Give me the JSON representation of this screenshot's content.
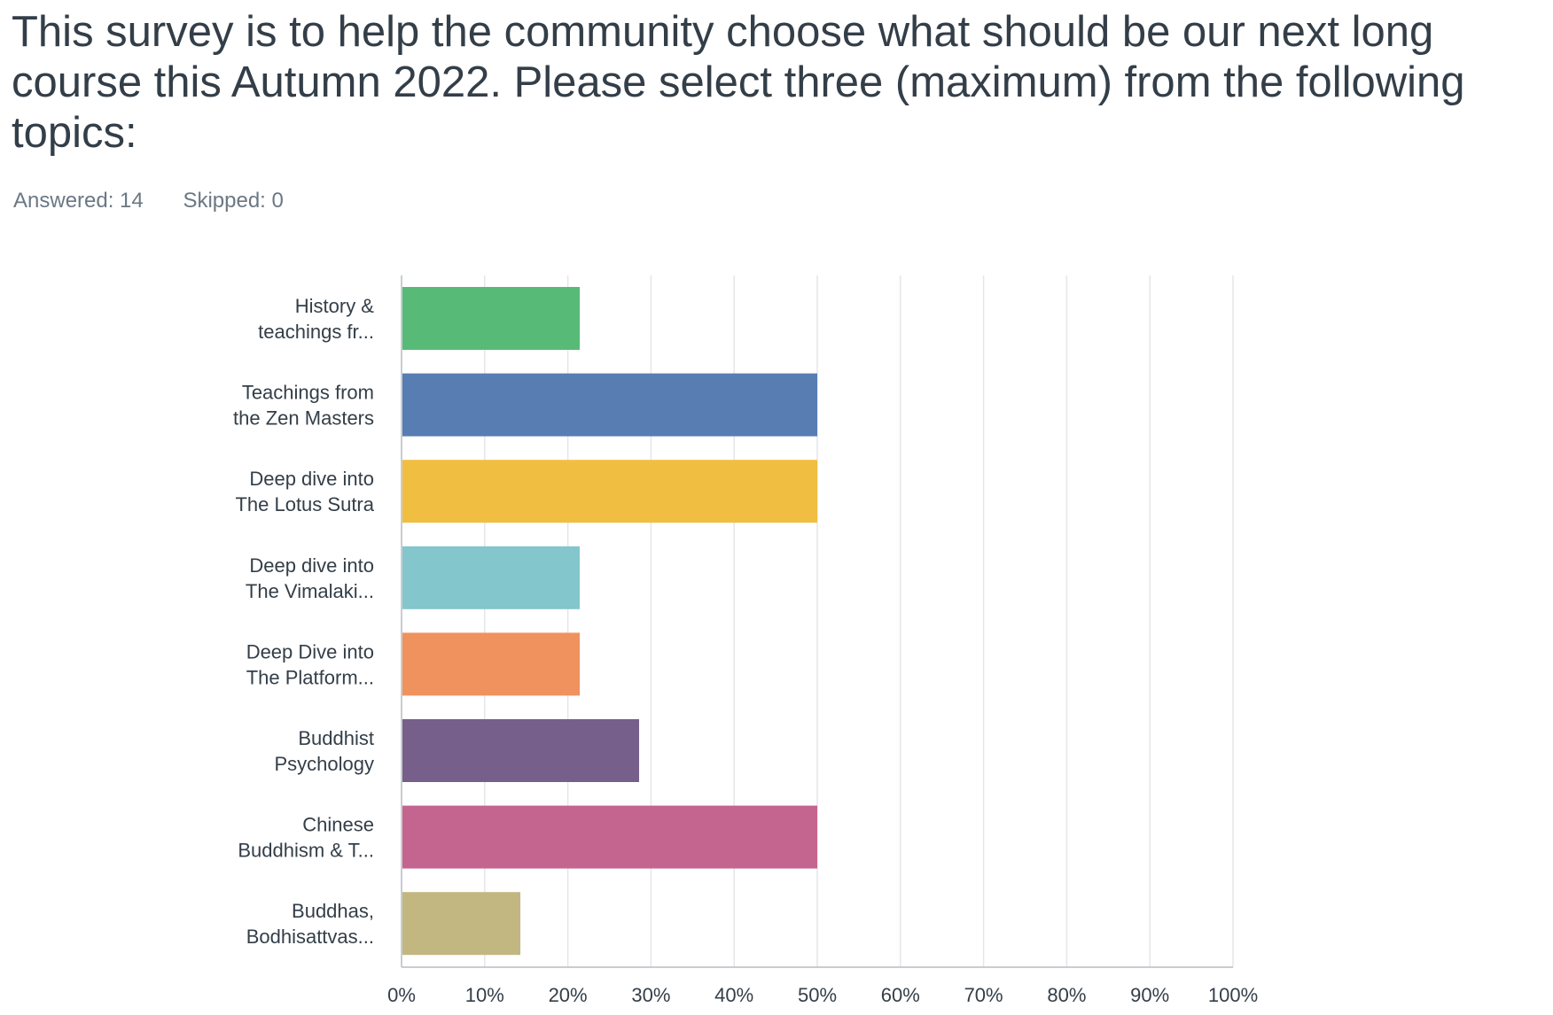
{
  "question": {
    "title": "This survey is to help the community choose what should be our next long course this Autumn 2022. Please select three (maximum) from the following topics:"
  },
  "stats": {
    "answered_label": "Answered: 14",
    "skipped_label": "Skipped: 0"
  },
  "chart_data": {
    "type": "bar",
    "orientation": "horizontal",
    "categories": [
      [
        "History &",
        "teachings fr..."
      ],
      [
        "Teachings from",
        "the Zen Masters"
      ],
      [
        "Deep dive into",
        "The Lotus Sutra"
      ],
      [
        "Deep dive into",
        "The Vimalaki..."
      ],
      [
        "Deep Dive into",
        "The Platform..."
      ],
      [
        "Buddhist",
        "Psychology"
      ],
      [
        "Chinese",
        "Buddhism & T..."
      ],
      [
        "Buddhas,",
        "Bodhisattvas..."
      ]
    ],
    "values": [
      21.43,
      50,
      50,
      21.43,
      21.43,
      28.57,
      50,
      14.29
    ],
    "colors": [
      "#57bb77",
      "#587db3",
      "#f0bf42",
      "#83c6cc",
      "#f0925d",
      "#775f8b",
      "#c4658f",
      "#c3b781"
    ],
    "xlim": [
      0,
      100
    ],
    "xticks": [
      0,
      10,
      20,
      30,
      40,
      50,
      60,
      70,
      80,
      90,
      100
    ],
    "tick_suffix": "%",
    "grid": true,
    "title": "",
    "xlabel": "",
    "ylabel": ""
  }
}
